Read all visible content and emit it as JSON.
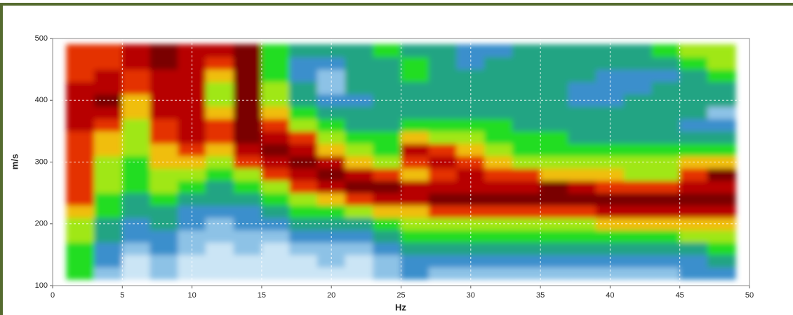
{
  "chart_data": {
    "type": "heatmap",
    "xlabel": "Hz",
    "ylabel": "m/s",
    "xlim": [
      0,
      50
    ],
    "ylim": [
      100,
      500
    ],
    "xticks": [
      0,
      5,
      10,
      15,
      20,
      25,
      30,
      35,
      40,
      45,
      50
    ],
    "yticks": [
      100,
      200,
      300,
      400,
      500
    ],
    "grid": true,
    "colormap": [
      "#ffffff",
      "#a9d3ee",
      "#1f7ec4",
      "#22dd22",
      "#f4ee10",
      "#e00000",
      "#7a0000"
    ],
    "x": [
      2,
      4,
      6,
      8,
      10,
      12,
      14,
      16,
      18,
      20,
      22,
      24,
      26,
      28,
      30,
      32,
      34,
      36,
      38,
      40,
      42,
      44,
      46,
      48
    ],
    "y": [
      120,
      140,
      160,
      180,
      200,
      220,
      240,
      260,
      280,
      300,
      320,
      340,
      360,
      380,
      400,
      420,
      440,
      460,
      480
    ],
    "values": [
      [
        0.5,
        0.5,
        0.5,
        0.6,
        0.6,
        0.7,
        0.8,
        0.8,
        0.8,
        0.8,
        0.8,
        0.8,
        0.9,
        0.9,
        0.9,
        0.9,
        0.8,
        0.8,
        0.8
      ],
      [
        0.2,
        0.3,
        0.3,
        0.4,
        0.4,
        0.5,
        0.5,
        0.6,
        0.6,
        0.6,
        0.7,
        0.7,
        0.8,
        0.9,
        1,
        0.9,
        0.9,
        0.8,
        0.8
      ],
      [
        0.1,
        0.1,
        0.2,
        0.3,
        0.3,
        0.4,
        0.4,
        0.5,
        0.5,
        0.5,
        0.6,
        0.6,
        0.6,
        0.7,
        0.7,
        0.8,
        0.8,
        0.9,
        0.9
      ],
      [
        0.2,
        0.2,
        0.3,
        0.3,
        0.4,
        0.4,
        0.5,
        0.6,
        0.6,
        0.7,
        0.7,
        0.8,
        0.8,
        0.9,
        0.9,
        0.9,
        0.9,
        1,
        1
      ],
      [
        0.1,
        0.1,
        0.2,
        0.2,
        0.3,
        0.3,
        0.4,
        0.5,
        0.6,
        0.7,
        0.8,
        0.9,
        0.9,
        0.9,
        0.9,
        0.9,
        0.9,
        0.9,
        0.9
      ],
      [
        0.1,
        0.1,
        0.1,
        0.2,
        0.2,
        0.3,
        0.4,
        0.4,
        0.5,
        0.6,
        0.7,
        0.8,
        0.8,
        0.7,
        0.6,
        0.6,
        0.7,
        0.8,
        0.9
      ],
      [
        0.1,
        0.1,
        0.2,
        0.2,
        0.3,
        0.3,
        0.4,
        0.5,
        0.6,
        0.8,
        0.9,
        1,
        1,
        1,
        1,
        1,
        1,
        1,
        1
      ],
      [
        0.1,
        0.1,
        0.1,
        0.2,
        0.3,
        0.4,
        0.5,
        0.6,
        0.8,
        0.9,
        1,
        0.9,
        0.8,
        0.7,
        0.6,
        0.6,
        0.5,
        0.5,
        0.5
      ],
      [
        0.1,
        0.1,
        0.2,
        0.3,
        0.4,
        0.5,
        0.6,
        0.8,
        0.9,
        1,
        0.9,
        0.8,
        0.6,
        0.5,
        0.4,
        0.4,
        0.3,
        0.3,
        0.4
      ],
      [
        0.1,
        0.2,
        0.2,
        0.3,
        0.4,
        0.5,
        0.7,
        0.9,
        1,
        0.9,
        0.7,
        0.6,
        0.5,
        0.4,
        0.3,
        0.2,
        0.2,
        0.3,
        0.4
      ],
      [
        0.1,
        0.1,
        0.2,
        0.3,
        0.4,
        0.6,
        0.8,
        1,
        0.9,
        0.7,
        0.6,
        0.5,
        0.4,
        0.4,
        0.3,
        0.4,
        0.4,
        0.4,
        0.4
      ],
      [
        0.2,
        0.2,
        0.3,
        0.4,
        0.5,
        0.7,
        0.9,
        1,
        0.8,
        0.6,
        0.5,
        0.5,
        0.4,
        0.4,
        0.4,
        0.4,
        0.4,
        0.4,
        0.5
      ],
      [
        0.3,
        0.3,
        0.4,
        0.5,
        0.6,
        0.7,
        0.9,
        0.9,
        0.7,
        0.8,
        0.9,
        0.7,
        0.5,
        0.4,
        0.4,
        0.4,
        0.5,
        0.5,
        0.4
      ],
      [
        0.2,
        0.3,
        0.4,
        0.5,
        0.6,
        0.8,
        1,
        0.9,
        0.8,
        0.9,
        0.8,
        0.6,
        0.5,
        0.4,
        0.4,
        0.4,
        0.4,
        0.4,
        0.4
      ],
      [
        0.2,
        0.3,
        0.4,
        0.5,
        0.6,
        0.8,
        1,
        0.9,
        0.9,
        0.8,
        0.7,
        0.6,
        0.5,
        0.4,
        0.4,
        0.4,
        0.4,
        0.3,
        0.3
      ],
      [
        0.2,
        0.3,
        0.4,
        0.5,
        0.6,
        0.8,
        1,
        0.9,
        0.8,
        0.7,
        0.6,
        0.5,
        0.5,
        0.4,
        0.4,
        0.4,
        0.4,
        0.4,
        0.3
      ],
      [
        0.2,
        0.3,
        0.4,
        0.5,
        0.6,
        0.8,
        1,
        0.9,
        0.8,
        0.6,
        0.5,
        0.5,
        0.4,
        0.4,
        0.4,
        0.4,
        0.4,
        0.4,
        0.4
      ],
      [
        0.2,
        0.3,
        0.4,
        0.5,
        0.6,
        0.8,
        1,
        1,
        0.7,
        0.6,
        0.5,
        0.5,
        0.4,
        0.4,
        0.4,
        0.4,
        0.4,
        0.4,
        0.4
      ],
      [
        0.2,
        0.3,
        0.4,
        0.5,
        0.6,
        0.8,
        1,
        0.9,
        0.7,
        0.6,
        0.5,
        0.4,
        0.4,
        0.4,
        0.3,
        0.3,
        0.4,
        0.4,
        0.4
      ],
      [
        0.2,
        0.3,
        0.4,
        0.5,
        0.7,
        0.9,
        1,
        0.8,
        0.7,
        0.6,
        0.5,
        0.4,
        0.4,
        0.4,
        0.3,
        0.3,
        0.3,
        0.4,
        0.4
      ],
      [
        0.2,
        0.3,
        0.4,
        0.5,
        0.7,
        0.9,
        1,
        0.8,
        0.6,
        0.6,
        0.5,
        0.4,
        0.4,
        0.4,
        0.4,
        0.3,
        0.3,
        0.4,
        0.4
      ],
      [
        0.2,
        0.3,
        0.4,
        0.5,
        0.7,
        0.9,
        1,
        0.8,
        0.6,
        0.6,
        0.5,
        0.4,
        0.4,
        0.4,
        0.4,
        0.4,
        0.3,
        0.4,
        0.5
      ],
      [
        0.3,
        0.3,
        0.4,
        0.6,
        0.7,
        0.9,
        1,
        0.9,
        0.8,
        0.7,
        0.5,
        0.4,
        0.3,
        0.4,
        0.4,
        0.4,
        0.4,
        0.5,
        0.6
      ],
      [
        0.3,
        0.4,
        0.5,
        0.6,
        0.7,
        0.9,
        1,
        0.9,
        1,
        0.7,
        0.5,
        0.4,
        0.3,
        0.2,
        0.4,
        0.4,
        0.5,
        0.6,
        0.6
      ]
    ]
  }
}
